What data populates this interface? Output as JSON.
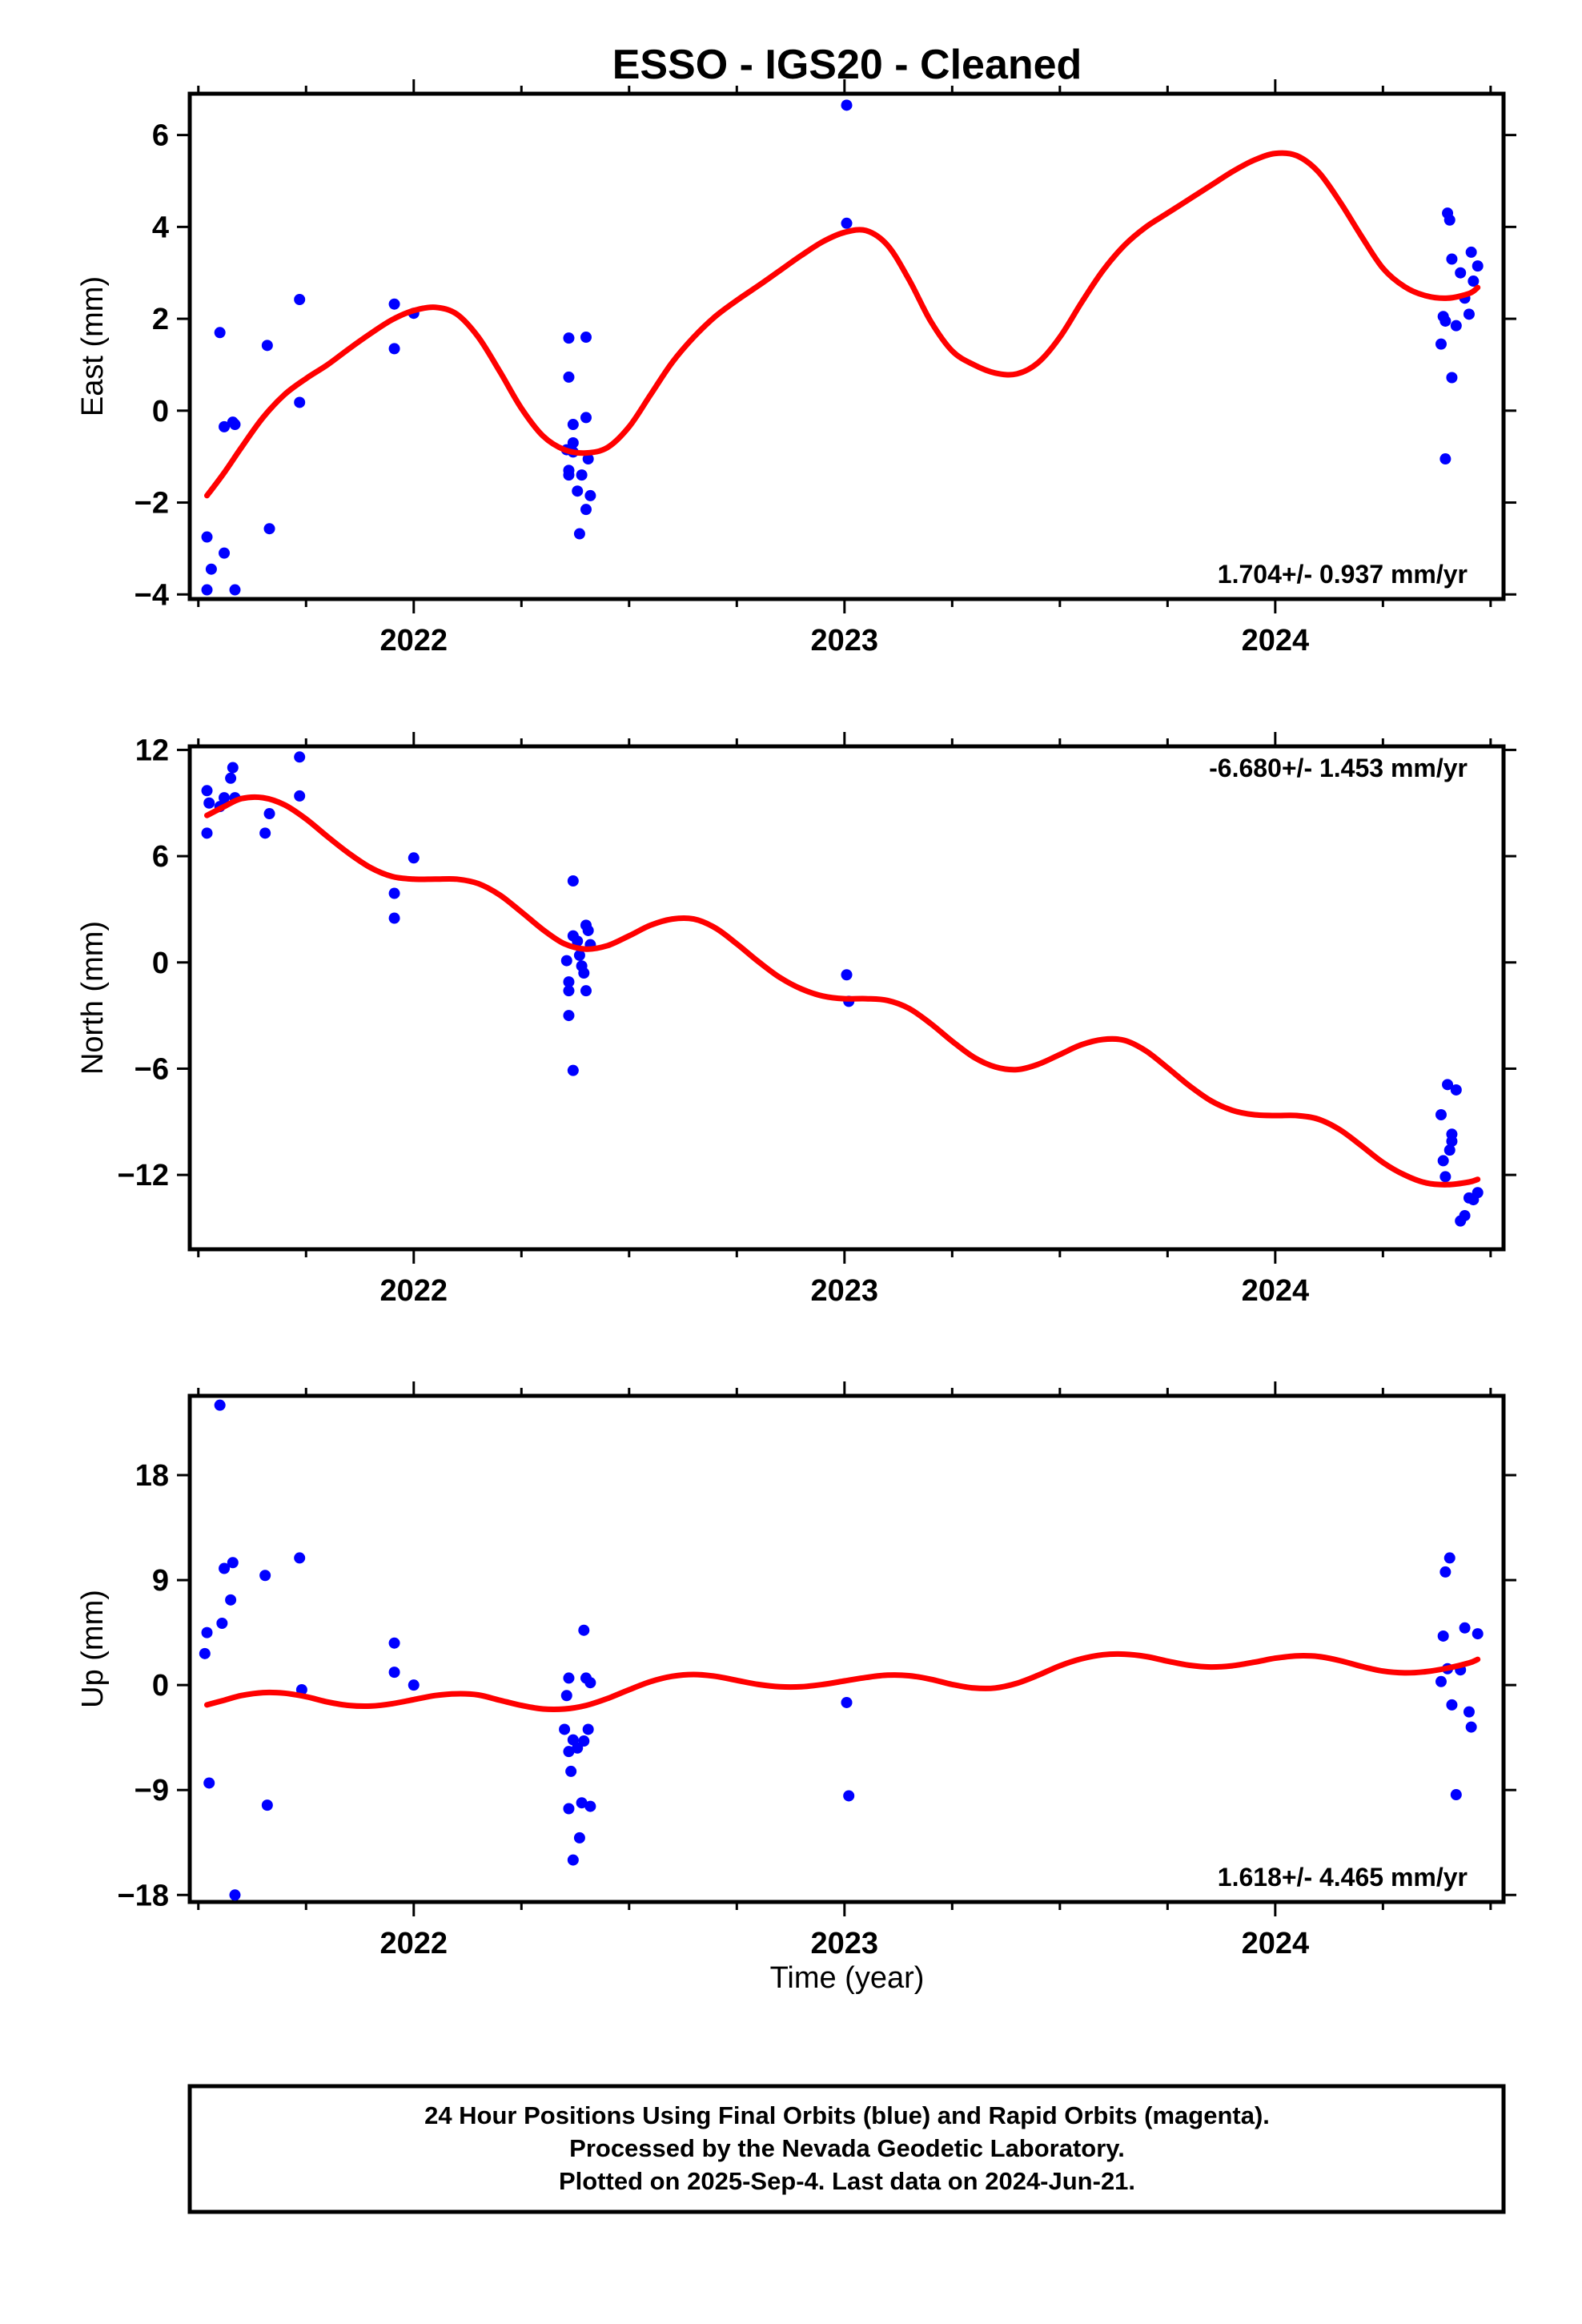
{
  "title": "ESSO  - IGS20 - Cleaned",
  "xlabel": "Time (year)",
  "footer": [
    "24 Hour Positions Using Final Orbits (blue) and Rapid Orbits (magenta).",
    "Processed by the Nevada Geodetic Laboratory.",
    "Plotted on 2025-Sep-4. Last data on 2024-Jun-21."
  ],
  "colors": {
    "points": "#0000ff",
    "fit": "#ff0000",
    "frame": "#000000"
  },
  "chart_data": [
    {
      "type": "scatter",
      "name": "east",
      "ylabel": "East (mm)",
      "rate": "1.704+/- 0.937 mm/yr",
      "xlim": [
        2021.48,
        2024.53
      ],
      "ylim": [
        -4.1,
        6.9
      ],
      "xticks": [
        2022,
        2023,
        2024
      ],
      "yticks": [
        -4,
        -2,
        0,
        2,
        4,
        6
      ],
      "ytick_labels": [
        "−4",
        "−2",
        "0",
        "2",
        "4",
        "6"
      ],
      "points": [
        [
          2021.52,
          -2.75
        ],
        [
          2021.53,
          -3.45
        ],
        [
          2021.52,
          -3.9
        ],
        [
          2021.55,
          1.7
        ],
        [
          2021.56,
          -0.35
        ],
        [
          2021.56,
          -3.1
        ],
        [
          2021.58,
          -0.25
        ],
        [
          2021.585,
          -0.3
        ],
        [
          2021.585,
          -3.9
        ],
        [
          2021.66,
          1.42
        ],
        [
          2021.665,
          -2.57
        ],
        [
          2021.735,
          2.42
        ],
        [
          2021.735,
          0.18
        ],
        [
          2021.955,
          2.32
        ],
        [
          2021.955,
          1.35
        ],
        [
          2022.0,
          2.12
        ],
        [
          2022.36,
          1.58
        ],
        [
          2022.36,
          0.73
        ],
        [
          2022.355,
          -0.85
        ],
        [
          2022.36,
          -1.3
        ],
        [
          2022.36,
          -1.4
        ],
        [
          2022.37,
          -0.3
        ],
        [
          2022.37,
          -0.7
        ],
        [
          2022.37,
          -0.9
        ],
        [
          2022.38,
          -1.75
        ],
        [
          2022.385,
          -2.68
        ],
        [
          2022.39,
          -1.4
        ],
        [
          2022.4,
          -2.15
        ],
        [
          2022.4,
          1.6
        ],
        [
          2022.4,
          -0.15
        ],
        [
          2022.405,
          -1.05
        ],
        [
          2022.41,
          -1.85
        ],
        [
          2023.005,
          6.65
        ],
        [
          2023.005,
          4.08
        ],
        [
          2024.385,
          1.45
        ],
        [
          2024.39,
          2.05
        ],
        [
          2024.395,
          1.95
        ],
        [
          2024.395,
          -1.05
        ],
        [
          2024.4,
          4.3
        ],
        [
          2024.405,
          4.15
        ],
        [
          2024.41,
          3.3
        ],
        [
          2024.41,
          0.72
        ],
        [
          2024.42,
          1.85
        ],
        [
          2024.43,
          3.0
        ],
        [
          2024.44,
          2.45
        ],
        [
          2024.45,
          2.1
        ],
        [
          2024.455,
          3.45
        ],
        [
          2024.46,
          2.82
        ],
        [
          2024.47,
          3.15
        ]
      ],
      "fit": [
        [
          2021.52,
          -1.85
        ],
        [
          2021.56,
          -1.35
        ],
        [
          2021.6,
          -0.8
        ],
        [
          2021.65,
          -0.15
        ],
        [
          2021.7,
          0.35
        ],
        [
          2021.75,
          0.7
        ],
        [
          2021.8,
          1.0
        ],
        [
          2021.85,
          1.35
        ],
        [
          2021.9,
          1.68
        ],
        [
          2021.95,
          1.98
        ],
        [
          2022.0,
          2.18
        ],
        [
          2022.05,
          2.25
        ],
        [
          2022.1,
          2.1
        ],
        [
          2022.15,
          1.6
        ],
        [
          2022.2,
          0.85
        ],
        [
          2022.25,
          0.05
        ],
        [
          2022.3,
          -0.55
        ],
        [
          2022.35,
          -0.85
        ],
        [
          2022.4,
          -0.92
        ],
        [
          2022.45,
          -0.8
        ],
        [
          2022.5,
          -0.35
        ],
        [
          2022.55,
          0.35
        ],
        [
          2022.6,
          1.05
        ],
        [
          2022.65,
          1.6
        ],
        [
          2022.7,
          2.05
        ],
        [
          2022.75,
          2.4
        ],
        [
          2022.8,
          2.72
        ],
        [
          2022.85,
          3.05
        ],
        [
          2022.9,
          3.38
        ],
        [
          2022.95,
          3.68
        ],
        [
          2023.0,
          3.88
        ],
        [
          2023.05,
          3.92
        ],
        [
          2023.1,
          3.6
        ],
        [
          2023.15,
          2.85
        ],
        [
          2023.2,
          1.95
        ],
        [
          2023.25,
          1.3
        ],
        [
          2023.3,
          1.0
        ],
        [
          2023.35,
          0.82
        ],
        [
          2023.4,
          0.8
        ],
        [
          2023.45,
          1.05
        ],
        [
          2023.5,
          1.6
        ],
        [
          2023.55,
          2.35
        ],
        [
          2023.6,
          3.05
        ],
        [
          2023.65,
          3.6
        ],
        [
          2023.7,
          4.0
        ],
        [
          2023.75,
          4.3
        ],
        [
          2023.8,
          4.6
        ],
        [
          2023.85,
          4.9
        ],
        [
          2023.9,
          5.2
        ],
        [
          2023.95,
          5.45
        ],
        [
          2024.0,
          5.6
        ],
        [
          2024.05,
          5.55
        ],
        [
          2024.1,
          5.2
        ],
        [
          2024.15,
          4.55
        ],
        [
          2024.2,
          3.8
        ],
        [
          2024.25,
          3.1
        ],
        [
          2024.3,
          2.7
        ],
        [
          2024.35,
          2.5
        ],
        [
          2024.4,
          2.45
        ],
        [
          2024.45,
          2.55
        ],
        [
          2024.47,
          2.68
        ]
      ]
    },
    {
      "type": "scatter",
      "name": "north",
      "ylabel": "North (mm)",
      "rate": "-6.680+/- 1.453 mm/yr",
      "xlim": [
        2021.48,
        2024.53
      ],
      "ylim": [
        -16.2,
        12.2
      ],
      "xticks": [
        2022,
        2023,
        2024
      ],
      "yticks": [
        -12,
        -6,
        0,
        6,
        12
      ],
      "ytick_labels": [
        "−12",
        "−6",
        "0",
        "6",
        "12"
      ],
      "points": [
        [
          2021.52,
          9.7
        ],
        [
          2021.525,
          9.0
        ],
        [
          2021.52,
          7.3
        ],
        [
          2021.55,
          8.8
        ],
        [
          2021.56,
          9.3
        ],
        [
          2021.575,
          10.4
        ],
        [
          2021.58,
          11.0
        ],
        [
          2021.585,
          9.3
        ],
        [
          2021.655,
          7.3
        ],
        [
          2021.665,
          8.4
        ],
        [
          2021.735,
          11.6
        ],
        [
          2021.735,
          9.4
        ],
        [
          2021.955,
          3.9
        ],
        [
          2021.955,
          2.5
        ],
        [
          2022.0,
          5.9
        ],
        [
          2022.355,
          0.1
        ],
        [
          2022.36,
          -1.1
        ],
        [
          2022.36,
          -1.6
        ],
        [
          2022.36,
          -3.0
        ],
        [
          2022.37,
          4.6
        ],
        [
          2022.37,
          1.5
        ],
        [
          2022.37,
          -6.1
        ],
        [
          2022.38,
          1.2
        ],
        [
          2022.385,
          0.4
        ],
        [
          2022.39,
          -0.2
        ],
        [
          2022.395,
          -0.6
        ],
        [
          2022.4,
          2.1
        ],
        [
          2022.4,
          -1.6
        ],
        [
          2022.405,
          1.8
        ],
        [
          2022.41,
          1.0
        ],
        [
          2023.005,
          -0.7
        ],
        [
          2023.01,
          -2.2
        ],
        [
          2024.385,
          -8.6
        ],
        [
          2024.39,
          -11.2
        ],
        [
          2024.395,
          -12.1
        ],
        [
          2024.4,
          -6.9
        ],
        [
          2024.405,
          -10.6
        ],
        [
          2024.41,
          -10.1
        ],
        [
          2024.41,
          -9.7
        ],
        [
          2024.42,
          -7.2
        ],
        [
          2024.43,
          -14.6
        ],
        [
          2024.44,
          -14.3
        ],
        [
          2024.45,
          -13.3
        ],
        [
          2024.46,
          -13.4
        ],
        [
          2024.47,
          -13.0
        ]
      ],
      "fit": [
        [
          2021.52,
          8.3
        ],
        [
          2021.56,
          8.8
        ],
        [
          2021.6,
          9.25
        ],
        [
          2021.65,
          9.3
        ],
        [
          2021.7,
          8.9
        ],
        [
          2021.75,
          8.1
        ],
        [
          2021.8,
          7.1
        ],
        [
          2021.85,
          6.15
        ],
        [
          2021.9,
          5.35
        ],
        [
          2021.95,
          4.85
        ],
        [
          2022.0,
          4.7
        ],
        [
          2022.05,
          4.7
        ],
        [
          2022.1,
          4.7
        ],
        [
          2022.15,
          4.45
        ],
        [
          2022.2,
          3.8
        ],
        [
          2022.25,
          2.85
        ],
        [
          2022.3,
          1.85
        ],
        [
          2022.35,
          1.05
        ],
        [
          2022.4,
          0.75
        ],
        [
          2022.45,
          0.95
        ],
        [
          2022.5,
          1.5
        ],
        [
          2022.55,
          2.1
        ],
        [
          2022.6,
          2.45
        ],
        [
          2022.65,
          2.45
        ],
        [
          2022.7,
          1.95
        ],
        [
          2022.75,
          1.05
        ],
        [
          2022.8,
          0.05
        ],
        [
          2022.85,
          -0.85
        ],
        [
          2022.9,
          -1.5
        ],
        [
          2022.95,
          -1.9
        ],
        [
          2023.0,
          -2.05
        ],
        [
          2023.05,
          -2.05
        ],
        [
          2023.1,
          -2.15
        ],
        [
          2023.15,
          -2.6
        ],
        [
          2023.2,
          -3.45
        ],
        [
          2023.25,
          -4.45
        ],
        [
          2023.3,
          -5.35
        ],
        [
          2023.35,
          -5.9
        ],
        [
          2023.4,
          -6.05
        ],
        [
          2023.45,
          -5.75
        ],
        [
          2023.5,
          -5.2
        ],
        [
          2023.55,
          -4.65
        ],
        [
          2023.6,
          -4.35
        ],
        [
          2023.65,
          -4.4
        ],
        [
          2023.7,
          -5.0
        ],
        [
          2023.75,
          -5.95
        ],
        [
          2023.8,
          -6.95
        ],
        [
          2023.85,
          -7.8
        ],
        [
          2023.9,
          -8.35
        ],
        [
          2023.95,
          -8.6
        ],
        [
          2024.0,
          -8.65
        ],
        [
          2024.05,
          -8.65
        ],
        [
          2024.1,
          -8.85
        ],
        [
          2024.15,
          -9.45
        ],
        [
          2024.2,
          -10.35
        ],
        [
          2024.25,
          -11.3
        ],
        [
          2024.3,
          -12.0
        ],
        [
          2024.35,
          -12.45
        ],
        [
          2024.4,
          -12.55
        ],
        [
          2024.45,
          -12.4
        ],
        [
          2024.47,
          -12.25
        ]
      ]
    },
    {
      "type": "scatter",
      "name": "up",
      "ylabel": "Up (mm)",
      "rate": "1.618+/- 4.465 mm/yr",
      "xlim": [
        2021.48,
        2024.53
      ],
      "ylim": [
        -18.6,
        24.8
      ],
      "xticks": [
        2022,
        2023,
        2024
      ],
      "yticks": [
        -18,
        -9,
        0,
        9,
        18
      ],
      "ytick_labels": [
        "−18",
        "−9",
        "0",
        "9",
        "18"
      ],
      "points": [
        [
          2021.515,
          2.7
        ],
        [
          2021.52,
          4.5
        ],
        [
          2021.525,
          -8.4
        ],
        [
          2021.55,
          24.0
        ],
        [
          2021.555,
          5.3
        ],
        [
          2021.56,
          10.0
        ],
        [
          2021.575,
          7.3
        ],
        [
          2021.58,
          10.5
        ],
        [
          2021.585,
          -18.0
        ],
        [
          2021.655,
          9.4
        ],
        [
          2021.66,
          -10.3
        ],
        [
          2021.735,
          10.9
        ],
        [
          2021.74,
          -0.4
        ],
        [
          2021.955,
          3.6
        ],
        [
          2021.955,
          1.1
        ],
        [
          2022.0,
          0.0
        ],
        [
          2022.35,
          -3.8
        ],
        [
          2022.355,
          -0.9
        ],
        [
          2022.36,
          0.6
        ],
        [
          2022.36,
          -5.7
        ],
        [
          2022.36,
          -10.6
        ],
        [
          2022.365,
          -7.4
        ],
        [
          2022.37,
          -4.7
        ],
        [
          2022.37,
          -15.0
        ],
        [
          2022.38,
          -5.4
        ],
        [
          2022.385,
          -13.1
        ],
        [
          2022.39,
          -10.1
        ],
        [
          2022.395,
          -4.8
        ],
        [
          2022.395,
          4.7
        ],
        [
          2022.4,
          0.6
        ],
        [
          2022.405,
          -3.8
        ],
        [
          2022.41,
          -10.4
        ],
        [
          2022.41,
          0.2
        ],
        [
          2023.005,
          -1.5
        ],
        [
          2023.01,
          -9.5
        ],
        [
          2024.385,
          0.3
        ],
        [
          2024.39,
          4.2
        ],
        [
          2024.395,
          9.7
        ],
        [
          2024.4,
          1.4
        ],
        [
          2024.405,
          10.9
        ],
        [
          2024.41,
          -1.7
        ],
        [
          2024.42,
          -9.4
        ],
        [
          2024.43,
          1.3
        ],
        [
          2024.44,
          4.9
        ],
        [
          2024.45,
          -2.3
        ],
        [
          2024.455,
          -3.6
        ],
        [
          2024.47,
          4.4
        ]
      ],
      "fit": [
        [
          2021.52,
          -1.7
        ],
        [
          2021.56,
          -1.3
        ],
        [
          2021.6,
          -0.9
        ],
        [
          2021.65,
          -0.65
        ],
        [
          2021.7,
          -0.7
        ],
        [
          2021.75,
          -1.0
        ],
        [
          2021.8,
          -1.45
        ],
        [
          2021.85,
          -1.75
        ],
        [
          2021.9,
          -1.8
        ],
        [
          2021.95,
          -1.6
        ],
        [
          2022.0,
          -1.25
        ],
        [
          2022.05,
          -0.9
        ],
        [
          2022.1,
          -0.75
        ],
        [
          2022.15,
          -0.85
        ],
        [
          2022.2,
          -1.3
        ],
        [
          2022.25,
          -1.75
        ],
        [
          2022.3,
          -2.05
        ],
        [
          2022.35,
          -2.05
        ],
        [
          2022.4,
          -1.75
        ],
        [
          2022.45,
          -1.15
        ],
        [
          2022.5,
          -0.4
        ],
        [
          2022.55,
          0.3
        ],
        [
          2022.6,
          0.75
        ],
        [
          2022.65,
          0.9
        ],
        [
          2022.7,
          0.75
        ],
        [
          2022.75,
          0.4
        ],
        [
          2022.8,
          0.05
        ],
        [
          2022.85,
          -0.15
        ],
        [
          2022.9,
          -0.15
        ],
        [
          2022.95,
          0.05
        ],
        [
          2023.0,
          0.35
        ],
        [
          2023.05,
          0.65
        ],
        [
          2023.1,
          0.85
        ],
        [
          2023.15,
          0.8
        ],
        [
          2023.2,
          0.5
        ],
        [
          2023.25,
          0.05
        ],
        [
          2023.3,
          -0.25
        ],
        [
          2023.35,
          -0.25
        ],
        [
          2023.4,
          0.15
        ],
        [
          2023.45,
          0.85
        ],
        [
          2023.5,
          1.65
        ],
        [
          2023.55,
          2.25
        ],
        [
          2023.6,
          2.6
        ],
        [
          2023.65,
          2.65
        ],
        [
          2023.7,
          2.45
        ],
        [
          2023.75,
          2.05
        ],
        [
          2023.8,
          1.7
        ],
        [
          2023.85,
          1.55
        ],
        [
          2023.9,
          1.65
        ],
        [
          2023.95,
          1.95
        ],
        [
          2024.0,
          2.3
        ],
        [
          2024.05,
          2.5
        ],
        [
          2024.1,
          2.45
        ],
        [
          2024.15,
          2.1
        ],
        [
          2024.2,
          1.6
        ],
        [
          2024.25,
          1.2
        ],
        [
          2024.3,
          1.05
        ],
        [
          2024.35,
          1.15
        ],
        [
          2024.4,
          1.45
        ],
        [
          2024.45,
          1.9
        ],
        [
          2024.47,
          2.2
        ]
      ]
    }
  ]
}
